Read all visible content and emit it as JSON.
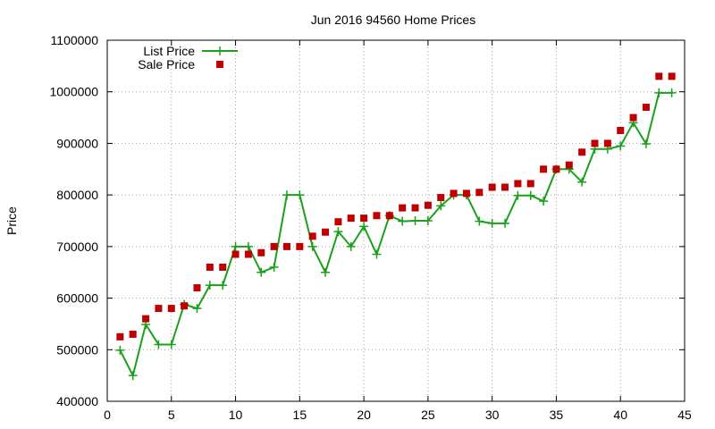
{
  "chart_data": {
    "type": "line",
    "title": "Jun 2016 94560 Home Prices",
    "xlabel": "",
    "ylabel": "Price",
    "xlim": [
      0,
      45
    ],
    "ylim": [
      400000,
      1100000
    ],
    "x_ticks": [
      0,
      5,
      10,
      15,
      20,
      25,
      30,
      35,
      40,
      45
    ],
    "y_ticks": [
      400000,
      500000,
      600000,
      700000,
      800000,
      900000,
      1000000,
      1100000
    ],
    "x_tick_labels": [
      "0",
      "5",
      "10",
      "15",
      "20",
      "25",
      "30",
      "35",
      "40",
      "45"
    ],
    "y_tick_labels": [
      "400000",
      "500000",
      "600000",
      "700000",
      "800000",
      "900000",
      "1000000",
      "1100000"
    ],
    "grid": true,
    "legend_position": "top-left",
    "x": [
      1,
      2,
      3,
      4,
      5,
      6,
      7,
      8,
      9,
      10,
      11,
      12,
      13,
      14,
      15,
      16,
      17,
      18,
      19,
      20,
      21,
      22,
      23,
      24,
      25,
      26,
      27,
      28,
      29,
      30,
      31,
      32,
      33,
      34,
      35,
      36,
      37,
      38,
      39,
      40,
      41,
      42,
      43,
      44
    ],
    "series": [
      {
        "name": "List Price",
        "style": "linespoints",
        "color": "#1aa01a",
        "values": [
          499000,
          450000,
          549000,
          510000,
          510000,
          588000,
          580000,
          625000,
          625000,
          700000,
          700000,
          650000,
          660000,
          800000,
          800000,
          700000,
          650000,
          729000,
          700000,
          739000,
          685000,
          760000,
          749000,
          750000,
          750000,
          779000,
          800000,
          800000,
          749000,
          745000,
          745000,
          799000,
          799000,
          788000,
          850000,
          850000,
          825000,
          889000,
          889000,
          895000,
          940000,
          899000,
          998000,
          998000
        ]
      },
      {
        "name": "Sale Price",
        "style": "points",
        "color": "#c00000",
        "values": [
          525000,
          530000,
          560000,
          580000,
          580000,
          585000,
          620000,
          660000,
          660000,
          685000,
          685000,
          688000,
          700000,
          700000,
          700000,
          720000,
          728000,
          748000,
          755000,
          755000,
          760000,
          760000,
          775000,
          775000,
          780000,
          795000,
          803000,
          803000,
          805000,
          815000,
          815000,
          822000,
          822000,
          850000,
          850000,
          858000,
          883000,
          900000,
          900000,
          925000,
          950000,
          970000,
          1030000,
          1030000
        ]
      }
    ]
  }
}
